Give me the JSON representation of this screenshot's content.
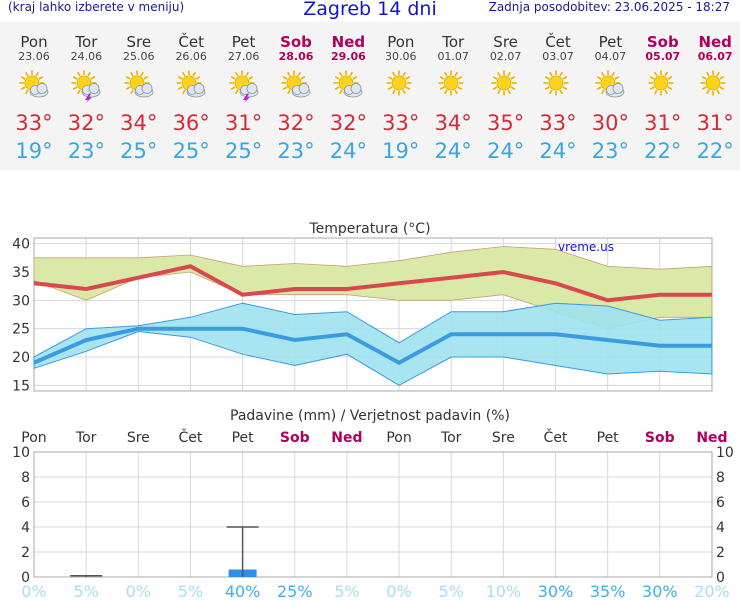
{
  "header": {
    "left_note": "(kraj lahko izberete v meniju)",
    "title": "Zagreb 14 dni",
    "updated": "Zadnja posodobitev: 23.06.2025 - 18:27"
  },
  "days": [
    {
      "name": "Pon",
      "date": "23.06",
      "weekend": false,
      "icon": "sun-cloud-icon",
      "tmax": "33°",
      "tmin": "19°"
    },
    {
      "name": "Tor",
      "date": "24.06",
      "weekend": false,
      "icon": "thunderstorm-icon",
      "tmax": "32°",
      "tmin": "23°"
    },
    {
      "name": "Sre",
      "date": "25.06",
      "weekend": false,
      "icon": "sun-cloud-icon",
      "tmax": "34°",
      "tmin": "25°"
    },
    {
      "name": "Čet",
      "date": "26.06",
      "weekend": false,
      "icon": "sun-cloud-icon",
      "tmax": "36°",
      "tmin": "25°"
    },
    {
      "name": "Pet",
      "date": "27.06",
      "weekend": false,
      "icon": "thunderstorm-icon",
      "tmax": "31°",
      "tmin": "25°"
    },
    {
      "name": "Sob",
      "date": "28.06",
      "weekend": true,
      "icon": "sun-cloud-icon",
      "tmax": "32°",
      "tmin": "23°"
    },
    {
      "name": "Ned",
      "date": "29.06",
      "weekend": true,
      "icon": "sun-cloud-icon",
      "tmax": "32°",
      "tmin": "24°"
    },
    {
      "name": "Pon",
      "date": "30.06",
      "weekend": false,
      "icon": "sun-icon",
      "tmax": "33°",
      "tmin": "19°"
    },
    {
      "name": "Tor",
      "date": "01.07",
      "weekend": false,
      "icon": "sun-icon",
      "tmax": "34°",
      "tmin": "24°"
    },
    {
      "name": "Sre",
      "date": "02.07",
      "weekend": false,
      "icon": "sun-icon",
      "tmax": "35°",
      "tmin": "24°"
    },
    {
      "name": "Čet",
      "date": "03.07",
      "weekend": false,
      "icon": "sun-icon",
      "tmax": "33°",
      "tmin": "24°"
    },
    {
      "name": "Pet",
      "date": "04.07",
      "weekend": false,
      "icon": "sun-cloud-icon",
      "tmax": "30°",
      "tmin": "23°"
    },
    {
      "name": "Sob",
      "date": "05.07",
      "weekend": true,
      "icon": "sun-icon",
      "tmax": "31°",
      "tmin": "22°"
    },
    {
      "name": "Ned",
      "date": "06.07",
      "weekend": true,
      "icon": "sun-icon",
      "tmax": "31°",
      "tmin": "22°"
    }
  ],
  "colors": {
    "max_line": "#d9474f",
    "min_line": "#3a9be0",
    "max_band": "#dbe9a8",
    "min_band": "#9fe2f0",
    "overlap": "#8fd18f",
    "precip_bar": "#2f8ee8",
    "prob_text": "#a8dcf5",
    "prob_text_strong": "#3ab0e8",
    "weekend": "#b0005a"
  },
  "chart_data": [
    {
      "type": "line",
      "title": "Temperatura (°C)",
      "watermark": "vreme.us",
      "categories": [
        "Pon",
        "Tor",
        "Sre",
        "Čet",
        "Pet",
        "Sob",
        "Ned",
        "Pon",
        "Tor",
        "Sre",
        "Čet",
        "Pet",
        "Sob",
        "Ned"
      ],
      "ylim": [
        14,
        41
      ],
      "yticks": [
        15,
        20,
        25,
        30,
        35,
        40
      ],
      "grid": true,
      "series": [
        {
          "values": [
            33,
            32,
            34,
            36,
            31,
            32,
            32,
            33,
            34,
            35,
            33,
            30,
            31,
            31
          ]
        },
        {
          "values": [
            37.5,
            37.5,
            37.5,
            38,
            36,
            36.5,
            36,
            37,
            38.5,
            39.5,
            39,
            36,
            35.5,
            36
          ]
        },
        {
          "values": [
            33.5,
            30,
            34,
            35,
            31,
            31,
            31,
            30,
            30,
            31,
            28,
            25,
            27,
            27
          ]
        },
        {
          "values": [
            19,
            23,
            25,
            25,
            25,
            23,
            24,
            19,
            24,
            24,
            24,
            23,
            22,
            22
          ]
        },
        {
          "values": [
            20,
            25,
            25.5,
            27,
            29.5,
            27.5,
            28,
            22.5,
            28,
            28,
            29.5,
            29,
            26.5,
            27
          ]
        },
        {
          "values": [
            18,
            21,
            24.5,
            23.5,
            20.5,
            18.5,
            20.5,
            15,
            20,
            20,
            18.5,
            17,
            17.5,
            17
          ]
        }
      ]
    },
    {
      "type": "bar",
      "title": "Padavine (mm) / Verjetnost padavin (%)",
      "categories": [
        "Pon",
        "Tor",
        "Sre",
        "Čet",
        "Pet",
        "Sob",
        "Ned",
        "Pon",
        "Tor",
        "Sre",
        "Čet",
        "Pet",
        "Sob",
        "Ned"
      ],
      "ylim": [
        0,
        10
      ],
      "yticks": [
        0,
        2,
        4,
        6,
        8,
        10
      ],
      "grid": true,
      "series": [
        {
          "values": [
            0,
            0,
            0,
            0,
            0.6,
            0,
            0,
            0,
            0,
            0,
            0,
            0,
            0,
            0
          ]
        },
        {
          "values": [
            0,
            0.1,
            0,
            0,
            4,
            0,
            0,
            0,
            0,
            0,
            0,
            0,
            0,
            0
          ]
        }
      ],
      "probabilities": [
        "0%",
        "5%",
        "0%",
        "5%",
        "40%",
        "25%",
        "5%",
        "0%",
        "5%",
        "10%",
        "30%",
        "35%",
        "30%",
        "20%"
      ]
    }
  ]
}
